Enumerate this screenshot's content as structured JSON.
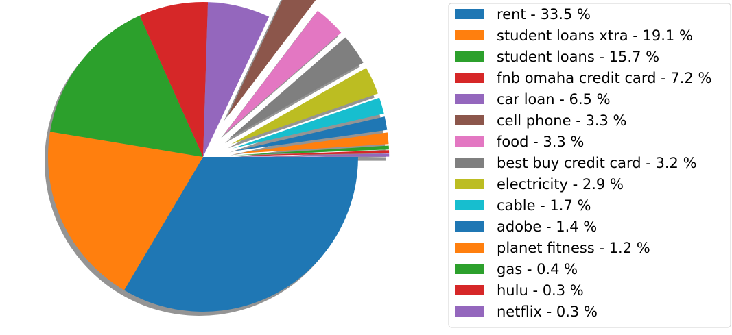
{
  "chart_data": {
    "type": "pie",
    "title": "",
    "shadow": true,
    "start_angle_deg": 0,
    "direction": "clockwise",
    "legend_position": "right",
    "slices": [
      {
        "label": "rent",
        "legend": "rent - 33.5 %",
        "value": 33.5,
        "color": "#1f77b4",
        "explode": 0
      },
      {
        "label": "student loans xtra",
        "legend": "student loans xtra - 19.1 %",
        "value": 19.1,
        "color": "#ff7f0e",
        "explode": 0
      },
      {
        "label": "student loans",
        "legend": "student loans - 15.7 %",
        "value": 15.7,
        "color": "#2ca02c",
        "explode": 0
      },
      {
        "label": "fnb omaha credit card",
        "legend": "fnb omaha credit card - 7.2 %",
        "value": 7.2,
        "color": "#d62728",
        "explode": 0
      },
      {
        "label": "car loan",
        "legend": "car loan - 6.5 %",
        "value": 6.5,
        "color": "#9467bd",
        "explode": 0
      },
      {
        "label": "cell phone",
        "legend": "cell phone - 3.3 %",
        "value": 3.3,
        "color": "#8c564b",
        "explode": 0.3
      },
      {
        "label": "food",
        "legend": "food - 3.3 %",
        "value": 3.3,
        "color": "#e377c2",
        "explode": 0.2
      },
      {
        "label": "best buy credit card",
        "legend": "best buy credit card - 3.2 %",
        "value": 3.2,
        "color": "#7f7f7f",
        "explode": 0.2
      },
      {
        "label": "electricity",
        "legend": "electricity - 2.9 %",
        "value": 2.9,
        "color": "#bcbd22",
        "explode": 0.2
      },
      {
        "label": "cable",
        "legend": "cable - 1.7 %",
        "value": 1.7,
        "color": "#17becf",
        "explode": 0.2
      },
      {
        "label": "adobe",
        "legend": "adobe - 1.4 %",
        "value": 1.4,
        "color": "#1f77b4",
        "explode": 0.2
      },
      {
        "label": "planet fitness",
        "legend": "planet fitness - 1.2 %",
        "value": 1.2,
        "color": "#ff7f0e",
        "explode": 0.2
      },
      {
        "label": "gas",
        "legend": "gas - 0.4 %",
        "value": 0.4,
        "color": "#2ca02c",
        "explode": 0.2
      },
      {
        "label": "hulu",
        "legend": "hulu - 0.3 %",
        "value": 0.3,
        "color": "#d62728",
        "explode": 0.2
      },
      {
        "label": "netflix",
        "legend": "netflix - 0.3 %",
        "value": 0.3,
        "color": "#9467bd",
        "explode": 0.2
      }
    ]
  }
}
